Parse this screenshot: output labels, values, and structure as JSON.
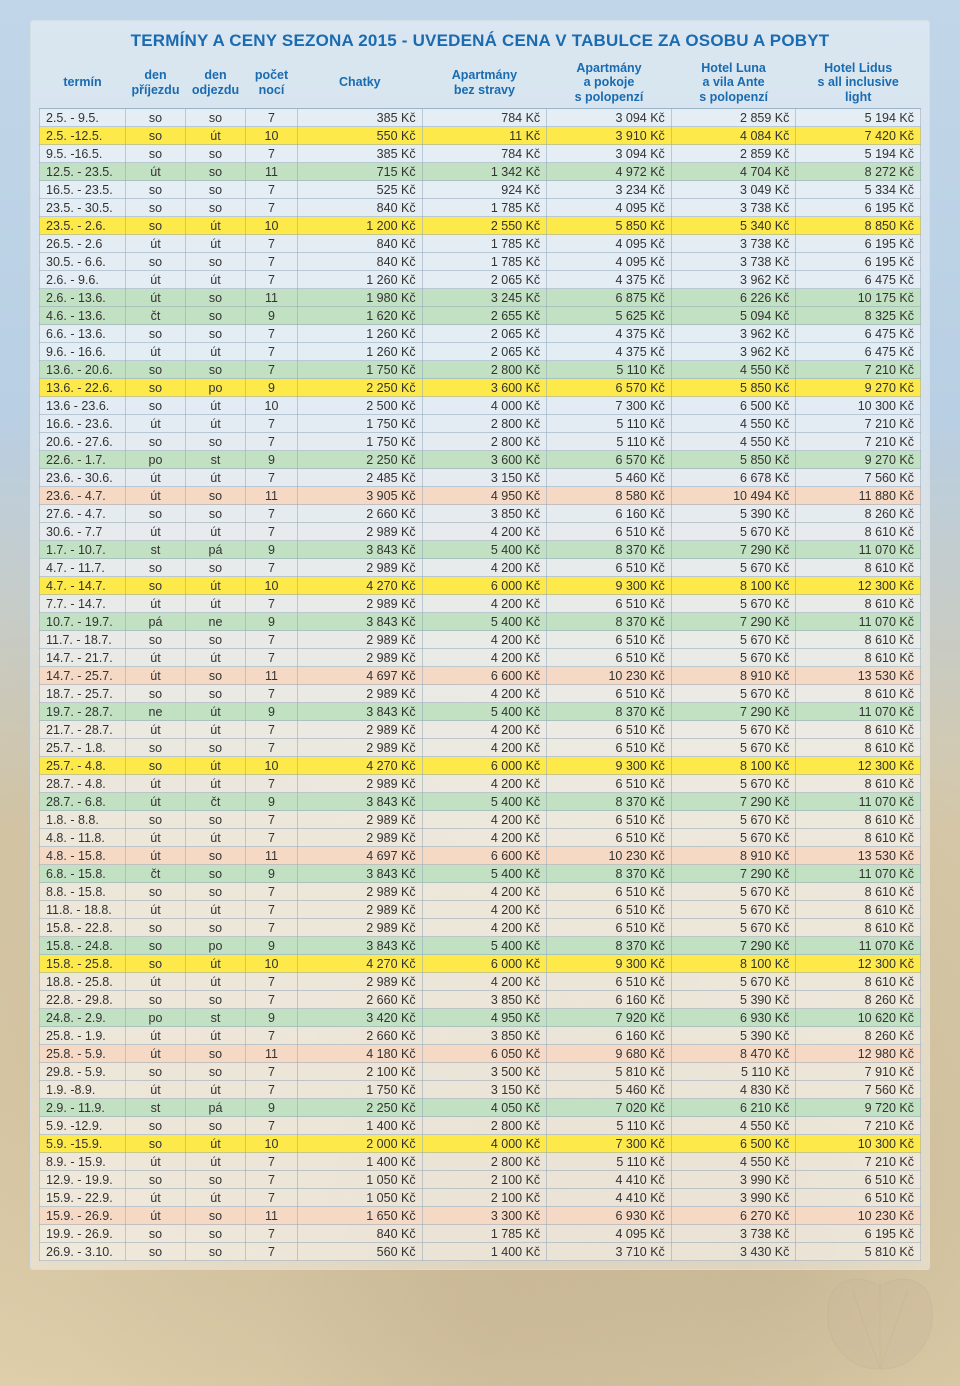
{
  "title": "TERMÍNY A CENY SEZONA 2015 - UVEDENÁ CENA V TABULCE ZA OSOBU A POBYT",
  "columns": [
    "termín",
    "den\npříjezdu",
    "den\nodjezdu",
    "počet\nnocí",
    "Chatky",
    "Apartmány\nbez stravy",
    "Apartmány\na pokoje\ns polopenzí",
    "Hotel Luna\na vila Ante\ns polopenzí",
    "Hotel Lidus\ns all inclusive\nlight"
  ],
  "col_widths": [
    "82px",
    "56px",
    "56px",
    "48px",
    "auto",
    "auto",
    "auto",
    "auto",
    "auto"
  ],
  "header_color": "#1a6bb0",
  "header_fontsize": 12.5,
  "row_fontsize": 12.5,
  "border_color": "rgba(150,170,185,.55)",
  "highlight_colors": {
    "yellow": "#fee94a",
    "green": "#c2e0c2",
    "peach": "#f5d9c5",
    "plain": "rgba(255,255,255,0.35)"
  },
  "currency_suffix": " Kč",
  "rows": [
    {
      "hl": "plain",
      "c": [
        "2.5. - 9.5.",
        "so",
        "so",
        "7",
        "385",
        "784",
        "3 094",
        "2 859",
        "5 194"
      ]
    },
    {
      "hl": "yellow",
      "c": [
        "2.5. -12.5.",
        "so",
        "út",
        "10",
        "550",
        "11",
        "3 910",
        "4 084",
        "7 420"
      ]
    },
    {
      "hl": "plain",
      "c": [
        "9.5. -16.5.",
        "so",
        "so",
        "7",
        "385",
        "784",
        "3 094",
        "2 859",
        "5 194"
      ]
    },
    {
      "hl": "green",
      "c": [
        "12.5. - 23.5.",
        "út",
        "so",
        "11",
        "715",
        "1 342",
        "4 972",
        "4 704",
        "8 272"
      ]
    },
    {
      "hl": "plain",
      "c": [
        "16.5. - 23.5.",
        "so",
        "so",
        "7",
        "525",
        "924",
        "3 234",
        "3 049",
        "5 334"
      ]
    },
    {
      "hl": "plain",
      "c": [
        "23.5. - 30.5.",
        "so",
        "so",
        "7",
        "840",
        "1 785",
        "4 095",
        "3 738",
        "6 195"
      ]
    },
    {
      "hl": "yellow",
      "c": [
        "23.5. - 2.6.",
        "so",
        "út",
        "10",
        "1 200",
        "2 550",
        "5 850",
        "5 340",
        "8 850"
      ]
    },
    {
      "hl": "plain",
      "c": [
        "26.5. - 2.6",
        "út",
        "út",
        "7",
        "840",
        "1 785",
        "4 095",
        "3 738",
        "6 195"
      ]
    },
    {
      "hl": "plain",
      "c": [
        "30.5. - 6.6.",
        "so",
        "so",
        "7",
        "840",
        "1 785",
        "4 095",
        "3 738",
        "6 195"
      ]
    },
    {
      "hl": "plain",
      "c": [
        "2.6. - 9.6.",
        "út",
        "út",
        "7",
        "1 260",
        "2 065",
        "4 375",
        "3 962",
        "6 475"
      ]
    },
    {
      "hl": "green",
      "c": [
        "2.6. - 13.6.",
        "út",
        "so",
        "11",
        "1 980",
        "3 245",
        "6 875",
        "6 226",
        "10 175"
      ]
    },
    {
      "hl": "green",
      "c": [
        "4.6. - 13.6.",
        "čt",
        "so",
        "9",
        "1 620",
        "2 655",
        "5 625",
        "5 094",
        "8 325"
      ]
    },
    {
      "hl": "plain",
      "c": [
        "6.6. - 13.6.",
        "so",
        "so",
        "7",
        "1 260",
        "2 065",
        "4 375",
        "3 962",
        "6 475"
      ]
    },
    {
      "hl": "plain",
      "c": [
        "9.6. - 16.6.",
        "út",
        "út",
        "7",
        "1 260",
        "2 065",
        "4 375",
        "3 962",
        "6 475"
      ]
    },
    {
      "hl": "green",
      "c": [
        "13.6. - 20.6.",
        "so",
        "so",
        "7",
        "1 750",
        "2 800",
        "5 110",
        "4 550",
        "7 210"
      ]
    },
    {
      "hl": "yellow",
      "c": [
        "13.6. - 22.6.",
        "so",
        "po",
        "9",
        "2 250",
        "3 600",
        "6 570",
        "5 850",
        "9 270"
      ]
    },
    {
      "hl": "plain",
      "c": [
        "13.6 - 23.6.",
        "so",
        "út",
        "10",
        "2 500",
        "4 000",
        "7 300",
        "6 500",
        "10 300"
      ]
    },
    {
      "hl": "plain",
      "c": [
        "16.6. - 23.6.",
        "út",
        "út",
        "7",
        "1 750",
        "2 800",
        "5 110",
        "4 550",
        "7 210"
      ]
    },
    {
      "hl": "plain",
      "c": [
        "20.6. - 27.6.",
        "so",
        "so",
        "7",
        "1 750",
        "2 800",
        "5 110",
        "4 550",
        "7 210"
      ]
    },
    {
      "hl": "green",
      "c": [
        "22.6. - 1.7.",
        "po",
        "st",
        "9",
        "2 250",
        "3 600",
        "6 570",
        "5 850",
        "9 270"
      ]
    },
    {
      "hl": "plain",
      "c": [
        "23.6. - 30.6.",
        "út",
        "út",
        "7",
        "2 485",
        "3 150",
        "5 460",
        "6 678",
        "7 560"
      ]
    },
    {
      "hl": "peach",
      "c": [
        "23.6. - 4.7.",
        "út",
        "so",
        "11",
        "3 905",
        "4 950",
        "8 580",
        "10 494",
        "11 880"
      ]
    },
    {
      "hl": "plain",
      "c": [
        "27.6. - 4.7.",
        "so",
        "so",
        "7",
        "2 660",
        "3 850",
        "6 160",
        "5 390",
        "8 260"
      ]
    },
    {
      "hl": "plain",
      "c": [
        "30.6. - 7.7",
        "út",
        "út",
        "7",
        "2 989",
        "4 200",
        "6 510",
        "5 670",
        "8 610"
      ]
    },
    {
      "hl": "green",
      "c": [
        "1.7. - 10.7.",
        "st",
        "pá",
        "9",
        "3 843",
        "5 400",
        "8 370",
        "7 290",
        "11 070"
      ]
    },
    {
      "hl": "plain",
      "c": [
        "4.7. - 11.7.",
        "so",
        "so",
        "7",
        "2 989",
        "4 200",
        "6 510",
        "5 670",
        "8 610"
      ]
    },
    {
      "hl": "yellow",
      "c": [
        "4.7. - 14.7.",
        "so",
        "út",
        "10",
        "4 270",
        "6 000",
        "9 300",
        "8 100",
        "12 300"
      ]
    },
    {
      "hl": "plain",
      "c": [
        "7.7. - 14.7.",
        "út",
        "út",
        "7",
        "2 989",
        "4 200",
        "6 510",
        "5 670",
        "8 610"
      ]
    },
    {
      "hl": "green",
      "c": [
        "10.7. - 19.7.",
        "pá",
        "ne",
        "9",
        "3 843",
        "5 400",
        "8 370",
        "7 290",
        "11 070"
      ]
    },
    {
      "hl": "plain",
      "c": [
        "11.7. - 18.7.",
        "so",
        "so",
        "7",
        "2 989",
        "4 200",
        "6 510",
        "5 670",
        "8 610"
      ]
    },
    {
      "hl": "plain",
      "c": [
        "14.7. - 21.7.",
        "út",
        "út",
        "7",
        "2 989",
        "4 200",
        "6 510",
        "5 670",
        "8 610"
      ]
    },
    {
      "hl": "peach",
      "c": [
        "14.7. - 25.7.",
        "út",
        "so",
        "11",
        "4 697",
        "6 600",
        "10 230",
        "8 910",
        "13 530"
      ]
    },
    {
      "hl": "plain",
      "c": [
        "18.7. - 25.7.",
        "so",
        "so",
        "7",
        "2 989",
        "4 200",
        "6 510",
        "5 670",
        "8 610"
      ]
    },
    {
      "hl": "green",
      "c": [
        "19.7. - 28.7.",
        "ne",
        "út",
        "9",
        "3 843",
        "5 400",
        "8 370",
        "7 290",
        "11 070"
      ]
    },
    {
      "hl": "plain",
      "c": [
        "21.7. - 28.7.",
        "út",
        "út",
        "7",
        "2 989",
        "4 200",
        "6 510",
        "5 670",
        "8 610"
      ]
    },
    {
      "hl": "plain",
      "c": [
        "25.7. - 1.8.",
        "so",
        "so",
        "7",
        "2 989",
        "4 200",
        "6 510",
        "5 670",
        "8 610"
      ]
    },
    {
      "hl": "yellow",
      "c": [
        "25.7. - 4.8.",
        "so",
        "út",
        "10",
        "4 270",
        "6 000",
        "9 300",
        "8 100",
        "12 300"
      ]
    },
    {
      "hl": "plain",
      "c": [
        "28.7. - 4.8.",
        "út",
        "út",
        "7",
        "2 989",
        "4 200",
        "6 510",
        "5 670",
        "8 610"
      ]
    },
    {
      "hl": "green",
      "c": [
        "28.7. - 6.8.",
        "út",
        "čt",
        "9",
        "3 843",
        "5 400",
        "8 370",
        "7 290",
        "11 070"
      ]
    },
    {
      "hl": "plain",
      "c": [
        "1.8. - 8.8.",
        "so",
        "so",
        "7",
        "2 989",
        "4 200",
        "6 510",
        "5 670",
        "8 610"
      ]
    },
    {
      "hl": "plain",
      "c": [
        "4.8. - 11.8.",
        "út",
        "út",
        "7",
        "2 989",
        "4 200",
        "6 510",
        "5 670",
        "8 610"
      ]
    },
    {
      "hl": "peach",
      "c": [
        "4.8. - 15.8.",
        "út",
        "so",
        "11",
        "4 697",
        "6 600",
        "10 230",
        "8 910",
        "13 530"
      ]
    },
    {
      "hl": "green",
      "c": [
        "6.8. - 15.8.",
        "čt",
        "so",
        "9",
        "3 843",
        "5 400",
        "8 370",
        "7 290",
        "11 070"
      ]
    },
    {
      "hl": "plain",
      "c": [
        "8.8. - 15.8.",
        "so",
        "so",
        "7",
        "2 989",
        "4 200",
        "6 510",
        "5 670",
        "8 610"
      ]
    },
    {
      "hl": "plain",
      "c": [
        "11.8. - 18.8.",
        "út",
        "út",
        "7",
        "2 989",
        "4 200",
        "6 510",
        "5 670",
        "8 610"
      ]
    },
    {
      "hl": "plain",
      "c": [
        "15.8. - 22.8.",
        "so",
        "so",
        "7",
        "2 989",
        "4 200",
        "6 510",
        "5 670",
        "8 610"
      ]
    },
    {
      "hl": "green",
      "c": [
        "15.8. - 24.8.",
        "so",
        "po",
        "9",
        "3 843",
        "5 400",
        "8 370",
        "7 290",
        "11 070"
      ]
    },
    {
      "hl": "yellow",
      "c": [
        "15.8. - 25.8.",
        "so",
        "út",
        "10",
        "4 270",
        "6 000",
        "9 300",
        "8 100",
        "12 300"
      ]
    },
    {
      "hl": "plain",
      "c": [
        "18.8. - 25.8.",
        "út",
        "út",
        "7",
        "2 989",
        "4 200",
        "6 510",
        "5 670",
        "8 610"
      ]
    },
    {
      "hl": "plain",
      "c": [
        "22.8. - 29.8.",
        "so",
        "so",
        "7",
        "2 660",
        "3 850",
        "6 160",
        "5 390",
        "8 260"
      ]
    },
    {
      "hl": "green",
      "c": [
        "24.8. - 2.9.",
        "po",
        "st",
        "9",
        "3 420",
        "4 950",
        "7 920",
        "6 930",
        "10 620"
      ]
    },
    {
      "hl": "plain",
      "c": [
        "25.8. - 1.9.",
        "út",
        "út",
        "7",
        "2 660",
        "3 850",
        "6 160",
        "5 390",
        "8 260"
      ]
    },
    {
      "hl": "peach",
      "c": [
        "25.8. - 5.9.",
        "út",
        "so",
        "11",
        "4 180",
        "6 050",
        "9 680",
        "8 470",
        "12 980"
      ]
    },
    {
      "hl": "plain",
      "c": [
        "29.8. - 5.9.",
        "so",
        "so",
        "7",
        "2 100",
        "3 500",
        "5 810",
        "5 110",
        "7 910"
      ]
    },
    {
      "hl": "plain",
      "c": [
        "1.9. -8.9.",
        "út",
        "út",
        "7",
        "1 750",
        "3 150",
        "5 460",
        "4 830",
        "7 560"
      ]
    },
    {
      "hl": "green",
      "c": [
        "2.9. - 11.9.",
        "st",
        "pá",
        "9",
        "2 250",
        "4 050",
        "7 020",
        "6 210",
        "9 720"
      ]
    },
    {
      "hl": "plain",
      "c": [
        "5.9. -12.9.",
        "so",
        "so",
        "7",
        "1 400",
        "2 800",
        "5 110",
        "4 550",
        "7 210"
      ]
    },
    {
      "hl": "yellow",
      "c": [
        "5.9. -15.9.",
        "so",
        "út",
        "10",
        "2 000",
        "4 000",
        "7 300",
        "6 500",
        "10 300"
      ]
    },
    {
      "hl": "plain",
      "c": [
        "8.9. - 15.9.",
        "út",
        "út",
        "7",
        "1 400",
        "2 800",
        "5 110",
        "4 550",
        "7 210"
      ]
    },
    {
      "hl": "plain",
      "c": [
        "12.9. - 19.9.",
        "so",
        "so",
        "7",
        "1 050",
        "2 100",
        "4 410",
        "3 990",
        "6 510"
      ]
    },
    {
      "hl": "plain",
      "c": [
        "15.9. - 22.9.",
        "út",
        "út",
        "7",
        "1 050",
        "2 100",
        "4 410",
        "3 990",
        "6 510"
      ]
    },
    {
      "hl": "peach",
      "c": [
        "15.9. - 26.9.",
        "út",
        "so",
        "11",
        "1 650",
        "3 300",
        "6 930",
        "6 270",
        "10 230"
      ]
    },
    {
      "hl": "plain",
      "c": [
        "19.9. - 26.9.",
        "so",
        "so",
        "7",
        "840",
        "1 785",
        "4 095",
        "3 738",
        "6 195"
      ]
    },
    {
      "hl": "plain",
      "c": [
        "26.9. - 3.10.",
        "so",
        "so",
        "7",
        "560",
        "1 400",
        "3 710",
        "3 430",
        "5 810"
      ]
    }
  ]
}
